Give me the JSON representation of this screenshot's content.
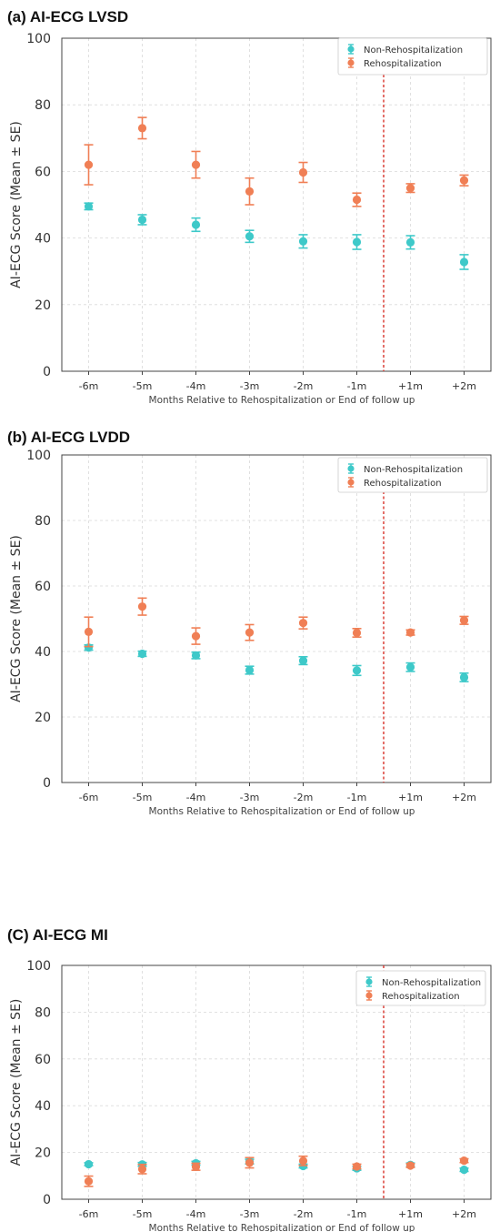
{
  "colors": {
    "non_rehosp": "#3ec9c9",
    "rehosp": "#f07f55",
    "ref_line": "#d9342b"
  },
  "chart_data": [
    {
      "type": "scatter",
      "panel": "(a) AI-ECG LVSD",
      "title": "(a) AI-ECG LVSD",
      "xlabel": "Months Relative to Rehospitalization or End of follow up",
      "ylabel": "AI-ECG Score (Mean ± SE)",
      "ylim": [
        0,
        100
      ],
      "yticks": [
        "0",
        "20",
        "40",
        "60",
        "80",
        "100"
      ],
      "categories": [
        "-6m",
        "-5m",
        "-4m",
        "-3m",
        "-2m",
        "-1m",
        "+1m",
        "+2m"
      ],
      "reference_line_between": [
        "-1m",
        "+1m"
      ],
      "legend_position": "top-right",
      "grid": true,
      "series": [
        {
          "name": "Non-Rehospitalization",
          "color": "#3ec9c9",
          "values": [
            49.5,
            45.5,
            44,
            40.5,
            39,
            38.8,
            38.7,
            32.8
          ],
          "errors": [
            1,
            1.5,
            2,
            1.8,
            2,
            2.2,
            2,
            2.2
          ]
        },
        {
          "name": "Rehospitalization",
          "color": "#f07f55",
          "values": [
            62,
            73,
            62,
            54,
            59.7,
            51.5,
            55,
            57.3
          ],
          "errors": [
            6,
            3.2,
            4,
            4,
            3,
            2,
            1.3,
            1.6
          ]
        }
      ]
    },
    {
      "type": "scatter",
      "panel": "(b) AI-ECG LVDD",
      "title": "(b) AI-ECG LVDD",
      "xlabel": "Months Relative to Rehospitalization or End of follow up",
      "ylabel": "AI-ECG Score (Mean ± SE)",
      "ylim": [
        0,
        100
      ],
      "yticks": [
        "0",
        "20",
        "40",
        "60",
        "80",
        "100"
      ],
      "categories": [
        "-6m",
        "-5m",
        "-4m",
        "-3m",
        "-2m",
        "-1m",
        "+1m",
        "+2m"
      ],
      "reference_line_between": [
        "-1m",
        "+1m"
      ],
      "legend_position": "top-right",
      "grid": true,
      "series": [
        {
          "name": "Non-Rehospitalization",
          "color": "#3ec9c9",
          "values": [
            41.2,
            39.3,
            38.8,
            34.3,
            37.2,
            34.2,
            35.2,
            32.1
          ],
          "errors": [
            0.8,
            0.8,
            1,
            1.2,
            1.2,
            1.5,
            1.3,
            1.3
          ]
        },
        {
          "name": "Rehospitalization",
          "color": "#f07f55",
          "values": [
            46,
            53.7,
            44.7,
            45.8,
            48.7,
            45.7,
            45.8,
            49.5
          ],
          "errors": [
            4.5,
            2.6,
            2.5,
            2.4,
            1.8,
            1.3,
            0.8,
            1.2
          ]
        }
      ]
    },
    {
      "type": "scatter",
      "panel": "(C) AI-ECG MI",
      "title": "(C) AI-ECG MI",
      "xlabel": "Months Relative to Rehospitalization or End of follow up",
      "ylabel": "AI-ECG Score (Mean ± SE)",
      "ylim": [
        0,
        100
      ],
      "yticks": [
        "0",
        "20",
        "40",
        "60",
        "80",
        "100"
      ],
      "categories": [
        "-6m",
        "-5m",
        "-4m",
        "-3m",
        "-2m",
        "-1m",
        "+1m",
        "+2m"
      ],
      "reference_line_between": [
        "-1m",
        "+1m"
      ],
      "legend_position": "top-right",
      "grid": true,
      "series": [
        {
          "name": "Non-Rehospitalization",
          "color": "#3ec9c9",
          "values": [
            15,
            14.9,
            15.4,
            16.1,
            14.2,
            13.2,
            14.7,
            12.6
          ],
          "errors": [
            0.6,
            0.8,
            0.8,
            1,
            0.8,
            0.8,
            0.8,
            0.7
          ]
        },
        {
          "name": "Rehospitalization",
          "color": "#f07f55",
          "values": [
            7.7,
            12.9,
            13.9,
            15.6,
            16.4,
            14,
            14.4,
            16.5
          ],
          "errors": [
            2.2,
            2,
            1.5,
            2.2,
            2,
            1,
            0.8,
            0.8
          ]
        }
      ]
    }
  ]
}
